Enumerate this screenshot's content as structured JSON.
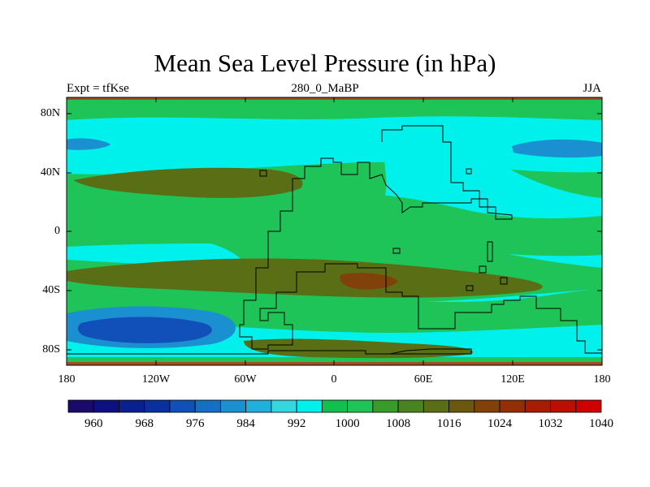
{
  "title": "Mean Sea Level Pressure (in hPa)",
  "subtitle_left": "Expt = tfKse",
  "subtitle_center": "280_0_MaBP",
  "subtitle_right": "JJA",
  "lat_ticks": [
    "80N",
    "40N",
    "0",
    "40S",
    "80S"
  ],
  "lon_ticks": [
    "180",
    "120W",
    "60W",
    "0",
    "60E",
    "120E",
    "180"
  ],
  "colorbar": {
    "labels": [
      "960",
      "968",
      "976",
      "984",
      "992",
      "1000",
      "1008",
      "1016",
      "1024",
      "1032",
      "1040"
    ],
    "colors": [
      "#1a0a6b",
      "#0d1080",
      "#0a2090",
      "#0a30a0",
      "#1050b8",
      "#1470c4",
      "#1a90d0",
      "#20b0dc",
      "#34d6e0",
      "#00f0ec",
      "#12c050",
      "#1ec458",
      "#3a9a2a",
      "#4a8422",
      "#5a6e16",
      "#6a5810",
      "#80420a",
      "#942e06",
      "#a81c04",
      "#bc0e02",
      "#d00000"
    ]
  },
  "colors": {
    "ocean_high": "#00f0ec",
    "normal": "#1ec458",
    "land_dark": "#3a9a2a",
    "high": "#5a6e16",
    "very_high": "#80420a",
    "low": "#1a90d0",
    "very_low": "#1050b8",
    "border_strip": "#a05020"
  }
}
